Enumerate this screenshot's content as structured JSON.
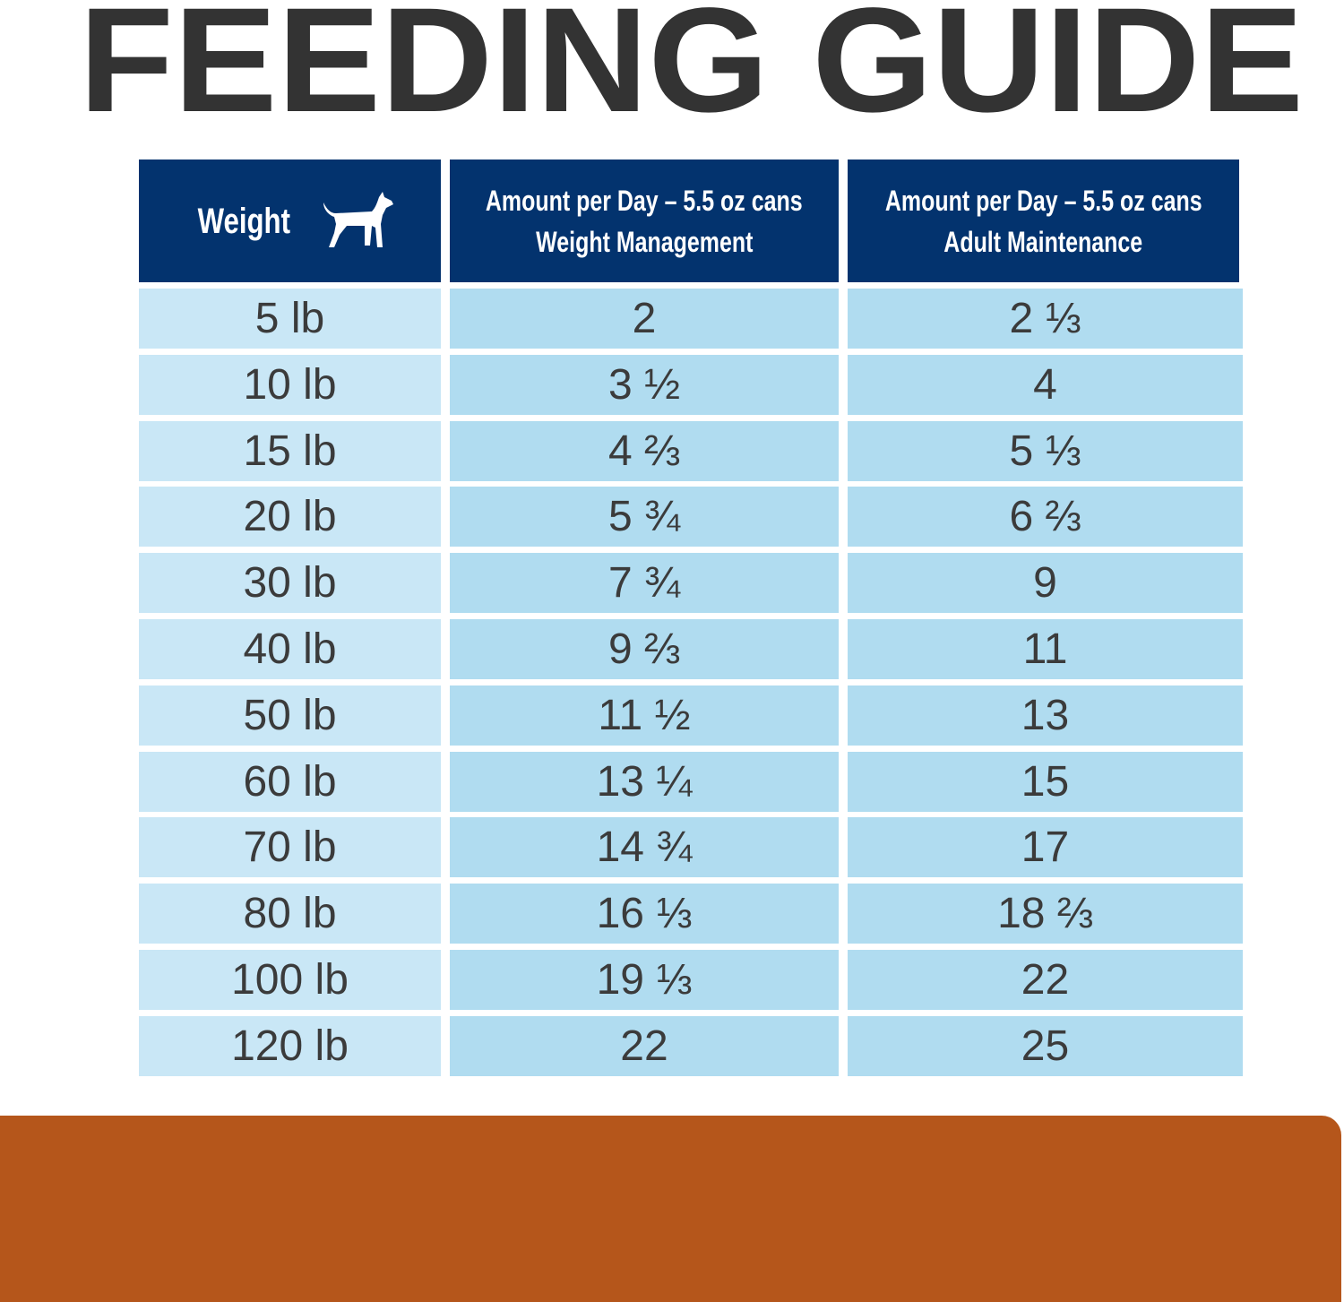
{
  "title": "FEEDING GUIDE",
  "table": {
    "header": [
      [
        "Weight"
      ],
      [
        "Amount per Day – 5.5 oz cans",
        "Weight Management"
      ],
      [
        "Amount per Day – 5.5 oz cans",
        "Adult Maintenance"
      ]
    ],
    "rows": [
      [
        "5 lb",
        "2",
        "2 ⅓"
      ],
      [
        "10 lb",
        "3 ½",
        "4"
      ],
      [
        "15 lb",
        "4 ⅔",
        "5 ⅓"
      ],
      [
        "20 lb",
        "5 ¾",
        "6 ⅔"
      ],
      [
        "30 lb",
        "7 ¾",
        "9"
      ],
      [
        "40 lb",
        "9 ⅔",
        "11"
      ],
      [
        "50 lb",
        "11 ½",
        "13"
      ],
      [
        "60 lb",
        "13 ¼",
        "15"
      ],
      [
        "70 lb",
        "14 ¾",
        "17"
      ],
      [
        "80 lb",
        "16 ⅓",
        "18 ⅔"
      ],
      [
        "100 lb",
        "19 ⅓",
        "22"
      ],
      [
        "120 lb",
        "22",
        "25"
      ]
    ]
  }
}
